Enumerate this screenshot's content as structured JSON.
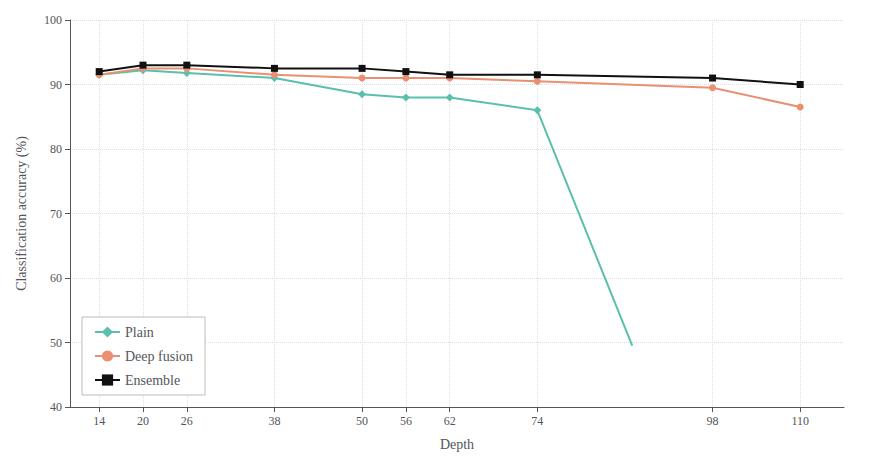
{
  "chart_data": {
    "type": "line",
    "xlabel": "Depth",
    "ylabel": "Classification accuracy (%)",
    "xlim": [
      10,
      116
    ],
    "xticks": [
      14,
      20,
      26,
      38,
      50,
      56,
      62,
      74,
      98,
      110
    ],
    "ylim": [
      40,
      100
    ],
    "yticks": [
      40,
      50,
      60,
      70,
      80,
      90,
      100
    ],
    "grid": true,
    "legend": "lower left",
    "series": [
      {
        "name": "Plain",
        "color": "#5bbfad",
        "marker": "diamond",
        "x": [
          14,
          20,
          26,
          38,
          50,
          56,
          62,
          74
        ],
        "values": [
          91.5,
          92.2,
          91.8,
          91.0,
          88.5,
          88.0,
          88.0,
          86.0
        ]
      },
      {
        "name": "Plain",
        "color": "#5bbfad",
        "marker": "none",
        "x": [
          74,
          87
        ],
        "values": [
          86.0,
          49.5
        ]
      },
      {
        "name": "Deep fusion",
        "color": "#e89070",
        "marker": "circle",
        "x": [
          14,
          20,
          26,
          38,
          50,
          56,
          62,
          74,
          98,
          110
        ],
        "values": [
          91.5,
          92.5,
          92.5,
          91.5,
          91.0,
          91.0,
          91.0,
          90.5,
          89.5,
          86.5
        ]
      },
      {
        "name": "Ensemble",
        "color": "#111111",
        "marker": "square",
        "x": [
          14,
          20,
          26,
          38,
          50,
          56,
          62,
          74,
          98,
          110
        ],
        "values": [
          92.0,
          93.0,
          93.0,
          92.5,
          92.5,
          92.0,
          91.5,
          91.5,
          91.0,
          90.0
        ]
      }
    ]
  }
}
